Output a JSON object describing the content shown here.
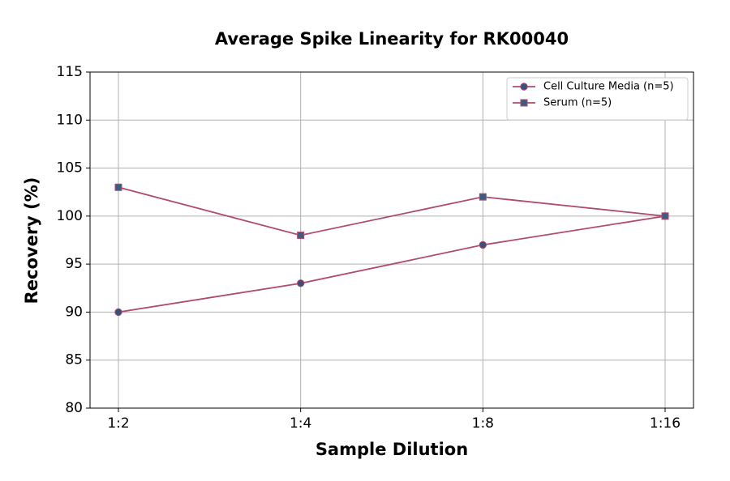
{
  "chart_data": {
    "type": "line",
    "title": "Average Spike Linearity for RK00040",
    "x_label": "Sample Dilution",
    "y_label": "Recovery (%)",
    "categories": [
      "1:2",
      "1:4",
      "1:8",
      "1:16"
    ],
    "series": [
      {
        "name": "Cell Culture Media (n=5)",
        "color": "#b04a6e",
        "marker": "circle",
        "marker_color": "#3b4e7c",
        "values": [
          90,
          93,
          97,
          100
        ]
      },
      {
        "name": "Serum (n=5)",
        "color": "#b04a6e",
        "marker": "square",
        "marker_color": "#3b5e80",
        "values": [
          103,
          98,
          102,
          100
        ]
      }
    ],
    "ylim": [
      80,
      115
    ],
    "yticks": [
      80,
      85,
      90,
      95,
      100,
      105,
      110,
      115
    ],
    "grid": true,
    "legend": "upper right"
  }
}
